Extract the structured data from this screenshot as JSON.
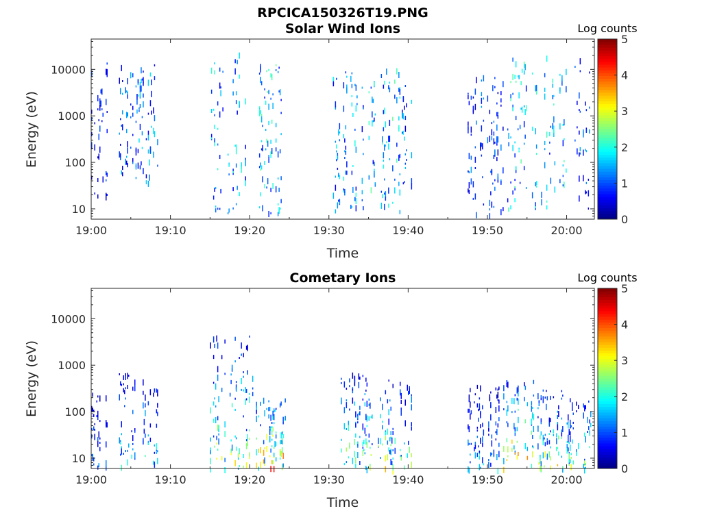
{
  "figure": {
    "title": "RPCICA150326T19.PNG"
  },
  "chart_data": [
    {
      "type": "heatmap",
      "title": "Solar Wind Ions",
      "xlabel": "Time",
      "ylabel": "Energy (eV)",
      "x_ticks": [
        "19:00",
        "19:10",
        "19:20",
        "19:30",
        "19:40",
        "19:50",
        "20:00"
      ],
      "y_ticks": [
        "10",
        "100",
        "1000",
        "10000"
      ],
      "y_scale": "log",
      "ylim": [
        6,
        45000
      ],
      "xlim_minutes": [
        0,
        63.5
      ],
      "colorbar": {
        "label": "Log counts",
        "ticks": [
          "0",
          "1",
          "2",
          "3",
          "4",
          "5"
        ],
        "range": [
          0,
          5
        ],
        "colormap": "jet"
      },
      "bursts": [
        {
          "t_start": 0.0,
          "t_end": 2.0,
          "e_min": 20,
          "e_max": 15000,
          "peak": 0.9
        },
        {
          "t_start": 3.5,
          "t_end": 5.3,
          "e_min": 40,
          "e_max": 13000,
          "peak": 1.3
        },
        {
          "t_start": 5.6,
          "t_end": 8.4,
          "e_min": 40,
          "e_max": 13000,
          "peak": 1.5
        },
        {
          "t_start": 15.0,
          "t_end": 19.8,
          "e_min": 8,
          "e_max": 28000,
          "peak": 1.8
        },
        {
          "t_start": 20.8,
          "t_end": 24.0,
          "e_min": 8,
          "e_max": 14000,
          "peak": 2.0
        },
        {
          "t_start": 30.5,
          "t_end": 34.8,
          "e_min": 9,
          "e_max": 11000,
          "peak": 1.7
        },
        {
          "t_start": 35.0,
          "t_end": 39.0,
          "e_min": 9,
          "e_max": 11000,
          "peak": 2.0
        },
        {
          "t_start": 39.2,
          "t_end": 40.5,
          "e_min": 30,
          "e_max": 5000,
          "peak": 1.5
        },
        {
          "t_start": 47.5,
          "t_end": 52.2,
          "e_min": 8,
          "e_max": 8000,
          "peak": 1.2
        },
        {
          "t_start": 52.5,
          "t_end": 57.5,
          "e_min": 10,
          "e_max": 20000,
          "peak": 2.0
        },
        {
          "t_start": 57.8,
          "t_end": 60.2,
          "e_min": 30,
          "e_max": 12000,
          "peak": 1.9
        },
        {
          "t_start": 61.0,
          "t_end": 63.0,
          "e_min": 10,
          "e_max": 22000,
          "peak": 1.3
        }
      ]
    },
    {
      "type": "heatmap",
      "title": "Cometary Ions",
      "xlabel": "Time",
      "ylabel": "Energy (eV)",
      "x_ticks": [
        "19:00",
        "19:10",
        "19:20",
        "19:30",
        "19:40",
        "19:50",
        "20:00"
      ],
      "y_ticks": [
        "10",
        "100",
        "1000",
        "10000"
      ],
      "y_scale": "log",
      "ylim": [
        6,
        45000
      ],
      "xlim_minutes": [
        0,
        63.5
      ],
      "colorbar": {
        "label": "Log counts",
        "ticks": [
          "0",
          "1",
          "2",
          "3",
          "4",
          "5"
        ],
        "range": [
          0,
          5
        ],
        "colormap": "jet"
      },
      "bursts": [
        {
          "t_start": 0.0,
          "t_end": 2.2,
          "e_min": 6,
          "e_max": 300,
          "peak": 1.0
        },
        {
          "t_start": 3.5,
          "t_end": 5.5,
          "e_min": 6,
          "e_max": 800,
          "peak": 1.4
        },
        {
          "t_start": 6.5,
          "t_end": 8.5,
          "e_min": 6,
          "e_max": 500,
          "peak": 1.7
        },
        {
          "t_start": 15.0,
          "t_end": 20.5,
          "e_min": 6,
          "e_max": 4500,
          "peak": 2.1
        },
        {
          "t_start": 20.8,
          "t_end": 24.5,
          "e_min": 6,
          "e_max": 200,
          "peak": 2.8
        },
        {
          "t_start": 31.5,
          "t_end": 35.0,
          "e_min": 6,
          "e_max": 700,
          "peak": 2.0
        },
        {
          "t_start": 35.0,
          "t_end": 37.5,
          "e_min": 6,
          "e_max": 300,
          "peak": 2.3
        },
        {
          "t_start": 37.5,
          "t_end": 40.5,
          "e_min": 6,
          "e_max": 500,
          "peak": 1.9
        },
        {
          "t_start": 47.5,
          "t_end": 51.5,
          "e_min": 6,
          "e_max": 400,
          "peak": 1.2
        },
        {
          "t_start": 52.0,
          "t_end": 56.0,
          "e_min": 6,
          "e_max": 500,
          "peak": 2.6
        },
        {
          "t_start": 56.2,
          "t_end": 59.5,
          "e_min": 6,
          "e_max": 300,
          "peak": 2.2
        },
        {
          "t_start": 60.0,
          "t_end": 63.0,
          "e_min": 6,
          "e_max": 200,
          "peak": 2.0
        }
      ]
    }
  ]
}
